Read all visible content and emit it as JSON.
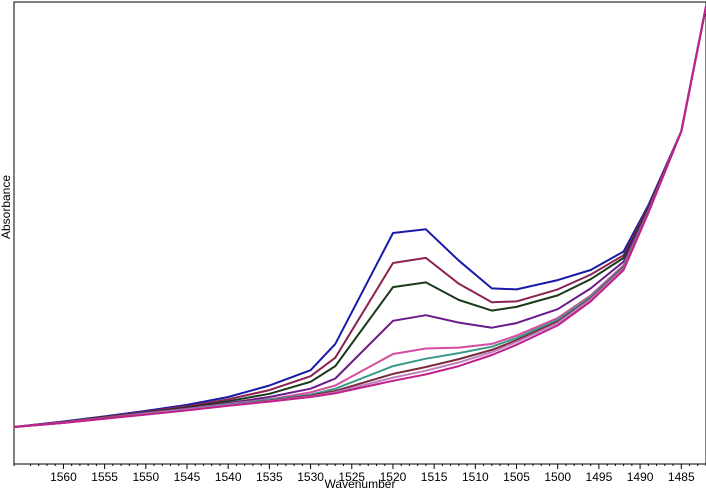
{
  "chart_data": {
    "type": "line",
    "title": "",
    "xlabel": "Wavenumber",
    "ylabel": "Absorbance",
    "x_reversed": true,
    "xlim": [
      1566,
      1482
    ],
    "ylim": [
      0,
      1
    ],
    "grid": false,
    "legend": "none",
    "x_ticks": [
      1560,
      1555,
      1550,
      1545,
      1540,
      1535,
      1530,
      1525,
      1520,
      1515,
      1510,
      1505,
      1500,
      1495,
      1490,
      1485
    ],
    "x_tick_labels": [
      "1560",
      "1555",
      "1550",
      "1545",
      "1540",
      "1535",
      "1530",
      "1525",
      "1520",
      "1515",
      "1510",
      "1505",
      "1500",
      "1495",
      "1490",
      "1485"
    ],
    "x": [
      1566,
      1560,
      1555,
      1550,
      1545,
      1540,
      1535,
      1530,
      1527,
      1520,
      1516,
      1512,
      1508,
      1505,
      1500,
      1496,
      1492,
      1489,
      1485,
      1482
    ],
    "series": [
      {
        "color": "#1a1aaa",
        "values": [
          0.08,
          0.092,
          0.103,
          0.115,
          0.128,
          0.145,
          0.17,
          0.203,
          0.26,
          0.5,
          0.508,
          0.44,
          0.38,
          0.378,
          0.398,
          0.42,
          0.46,
          0.56,
          0.72,
          0.99
        ]
      },
      {
        "color": "#8b2252",
        "values": [
          0.08,
          0.091,
          0.102,
          0.113,
          0.125,
          0.14,
          0.16,
          0.19,
          0.23,
          0.435,
          0.446,
          0.39,
          0.35,
          0.352,
          0.378,
          0.41,
          0.452,
          0.556,
          0.72,
          0.99
        ]
      },
      {
        "color": "#1a3a1a",
        "values": [
          0.08,
          0.091,
          0.101,
          0.112,
          0.122,
          0.136,
          0.152,
          0.178,
          0.212,
          0.383,
          0.393,
          0.355,
          0.332,
          0.34,
          0.365,
          0.4,
          0.446,
          0.553,
          0.72,
          0.99
        ]
      },
      {
        "color": "#6a1a8a",
        "values": [
          0.08,
          0.09,
          0.1,
          0.111,
          0.12,
          0.132,
          0.145,
          0.163,
          0.185,
          0.31,
          0.322,
          0.306,
          0.295,
          0.305,
          0.335,
          0.38,
          0.438,
          0.55,
          0.72,
          0.99
        ]
      },
      {
        "color": "#d64da0",
        "values": [
          0.08,
          0.09,
          0.1,
          0.11,
          0.119,
          0.13,
          0.14,
          0.155,
          0.17,
          0.238,
          0.25,
          0.252,
          0.26,
          0.278,
          0.316,
          0.365,
          0.43,
          0.547,
          0.72,
          0.99
        ]
      },
      {
        "color": "#3a9a8a",
        "values": [
          0.08,
          0.089,
          0.099,
          0.109,
          0.118,
          0.129,
          0.139,
          0.15,
          0.163,
          0.212,
          0.228,
          0.24,
          0.254,
          0.273,
          0.312,
          0.362,
          0.428,
          0.546,
          0.72,
          0.99
        ]
      },
      {
        "color": "#7a2a3a",
        "values": [
          0.08,
          0.089,
          0.099,
          0.108,
          0.117,
          0.127,
          0.137,
          0.148,
          0.158,
          0.195,
          0.21,
          0.227,
          0.247,
          0.268,
          0.308,
          0.358,
          0.425,
          0.545,
          0.72,
          0.99
        ]
      },
      {
        "color": "#c080c0",
        "values": [
          0.08,
          0.089,
          0.098,
          0.108,
          0.117,
          0.127,
          0.136,
          0.146,
          0.155,
          0.187,
          0.202,
          0.22,
          0.242,
          0.264,
          0.305,
          0.356,
          0.423,
          0.544,
          0.72,
          0.99
        ]
      },
      {
        "color": "#c0208a",
        "values": [
          0.08,
          0.089,
          0.098,
          0.107,
          0.116,
          0.126,
          0.135,
          0.145,
          0.153,
          0.18,
          0.194,
          0.212,
          0.236,
          0.258,
          0.3,
          0.352,
          0.42,
          0.543,
          0.72,
          0.99
        ]
      }
    ]
  }
}
